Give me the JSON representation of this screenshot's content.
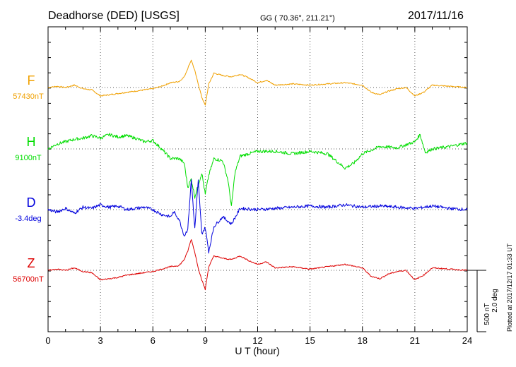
{
  "header": {
    "station": "Deadhorse (DED)  [USGS]",
    "coords": "GG ( 70.36°, 211.21°)",
    "date": "2017/11/16"
  },
  "footnote": "Plotted at 2017/12/17 01:33 UT",
  "scale": {
    "nt": "500 nT",
    "deg": "2.0 deg"
  },
  "chart_data": {
    "type": "line",
    "title": "Deadhorse (DED)  [USGS]",
    "xlabel": "U T (hour)",
    "xlim": [
      0,
      24
    ],
    "xticks": [
      0,
      3,
      6,
      9,
      12,
      15,
      18,
      21,
      24
    ],
    "xtick_labels": [
      "0",
      "3",
      "6",
      "9",
      "12",
      "15",
      "18",
      "21",
      "24"
    ],
    "grid": true,
    "series": [
      {
        "name": "F",
        "baseline_label": "57430nT",
        "color": "#f0a000",
        "x": [
          0,
          0.5,
          1,
          1.5,
          2,
          2.5,
          3,
          3.5,
          4,
          4.5,
          5,
          5.5,
          6,
          6.5,
          7,
          7.5,
          7.8,
          8,
          8.2,
          8.4,
          8.6,
          8.8,
          9,
          9.2,
          9.5,
          10,
          10.5,
          11,
          11.5,
          12,
          12.5,
          13,
          14,
          15,
          16,
          17,
          18,
          18.5,
          19,
          19.5,
          20,
          20.5,
          21,
          21.5,
          22,
          23,
          24
        ],
        "y": [
          0,
          10,
          0,
          20,
          -10,
          -20,
          -70,
          -60,
          -50,
          -40,
          -30,
          -20,
          -10,
          10,
          40,
          50,
          90,
          160,
          230,
          140,
          30,
          -80,
          -150,
          30,
          120,
          100,
          90,
          110,
          80,
          40,
          60,
          20,
          30,
          20,
          30,
          40,
          20,
          -40,
          -60,
          -30,
          -10,
          0,
          -70,
          -40,
          20,
          10,
          0
        ]
      },
      {
        "name": "H",
        "baseline_label": "9100nT",
        "color": "#00dd00",
        "x": [
          0,
          0.5,
          1,
          1.5,
          2,
          2.5,
          3,
          3.5,
          4,
          4.5,
          5,
          5.5,
          6,
          6.5,
          7,
          7.5,
          7.8,
          8,
          8.2,
          8.4,
          8.6,
          8.8,
          9,
          9.2,
          9.5,
          10,
          10.3,
          10.5,
          10.7,
          11,
          11.5,
          12,
          13,
          14,
          15,
          16,
          17,
          17.5,
          18,
          19,
          20,
          21,
          21.3,
          21.6,
          22,
          23,
          24
        ],
        "y": [
          0,
          40,
          60,
          80,
          90,
          110,
          90,
          120,
          100,
          110,
          90,
          60,
          70,
          0,
          -80,
          -80,
          -120,
          -320,
          -250,
          -400,
          -300,
          -200,
          -380,
          -220,
          -80,
          -100,
          -260,
          -480,
          -200,
          -60,
          -40,
          -20,
          -20,
          -40,
          -20,
          -40,
          -160,
          -120,
          -40,
          20,
          10,
          60,
          120,
          -30,
          0,
          20,
          50
        ]
      },
      {
        "name": "D",
        "baseline_label": "-3.4deg",
        "color": "#0000dd",
        "x": [
          0,
          0.5,
          1,
          1.5,
          2,
          2.5,
          3,
          3.5,
          4,
          4.5,
          5,
          5.5,
          6,
          6.5,
          7,
          7.2,
          7.5,
          7.8,
          8,
          8.2,
          8.4,
          8.6,
          8.8,
          9,
          9.2,
          9.5,
          10,
          10.5,
          11,
          12,
          13,
          14,
          15,
          16,
          17,
          18,
          19,
          20,
          21,
          22,
          23,
          24
        ],
        "y": [
          0,
          -20,
          10,
          -30,
          20,
          10,
          40,
          20,
          30,
          0,
          10,
          20,
          0,
          -40,
          -60,
          -20,
          -80,
          -220,
          -160,
          250,
          -160,
          240,
          -200,
          -150,
          -350,
          -140,
          -60,
          -120,
          10,
          0,
          10,
          20,
          30,
          20,
          40,
          20,
          30,
          20,
          10,
          30,
          10,
          0
        ]
      },
      {
        "name": "Z",
        "baseline_label": "56700nT",
        "color": "#dd0000",
        "x": [
          0,
          0.5,
          1,
          1.5,
          2,
          2.5,
          3,
          3.5,
          4,
          4.5,
          5,
          5.5,
          6,
          6.5,
          7,
          7.5,
          7.8,
          8,
          8.2,
          8.4,
          8.6,
          8.8,
          9,
          9.2,
          9.5,
          10,
          10.5,
          11,
          11.5,
          12,
          12.5,
          13,
          14,
          15,
          16,
          17,
          18,
          18.5,
          19,
          19.5,
          20,
          20.5,
          21,
          21.5,
          22,
          23,
          24
        ],
        "y": [
          0,
          10,
          0,
          20,
          -10,
          -20,
          -80,
          -70,
          -60,
          -40,
          -30,
          -20,
          -10,
          10,
          30,
          40,
          90,
          160,
          260,
          150,
          20,
          -80,
          -160,
          30,
          120,
          100,
          90,
          120,
          80,
          50,
          70,
          20,
          30,
          10,
          30,
          50,
          20,
          -50,
          -70,
          -30,
          -10,
          0,
          -80,
          -40,
          20,
          10,
          0
        ]
      }
    ]
  }
}
